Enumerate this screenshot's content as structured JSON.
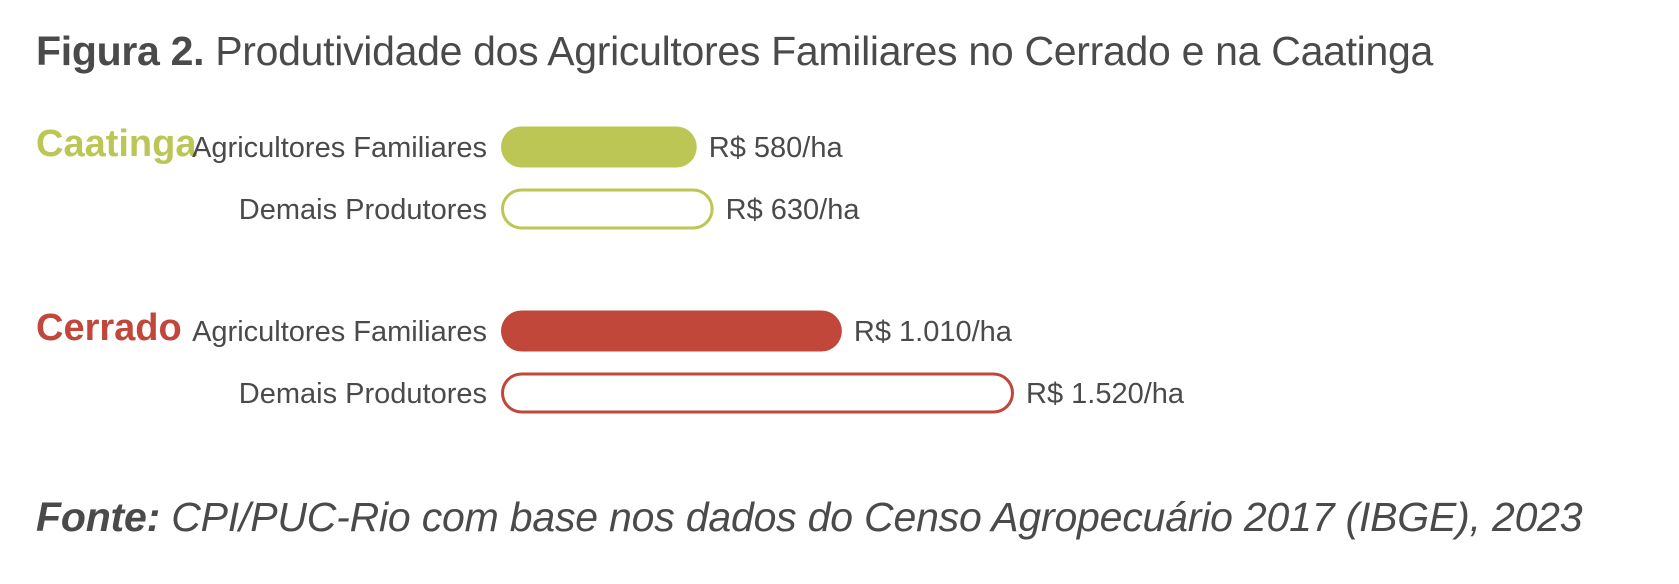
{
  "title": {
    "prefix": "Figura 2.",
    "text": "Produtividade dos Agricultores Familiares no Cerrado e na Caatinga"
  },
  "source": {
    "prefix": "Fonte:",
    "text": "CPI/PUC-Rio com base nos dados do Censo Agropecuário 2017 (IBGE), 2023"
  },
  "colors": {
    "caatinga": "#bcc654",
    "cerrado": "#c0473a",
    "text": "#4a4a4a"
  },
  "chart_data": {
    "type": "bar",
    "orientation": "horizontal",
    "unit": "R$/ha",
    "grid": false,
    "groups": [
      {
        "name": "Caatinga",
        "color": "#bcc654",
        "bars": [
          {
            "category": "Agricultores Familiares",
            "value": 580,
            "label": "R$ 580/ha",
            "style": "filled"
          },
          {
            "category": "Demais Produtores",
            "value": 630,
            "label": "R$ 630/ha",
            "style": "outline"
          }
        ]
      },
      {
        "name": "Cerrado",
        "color": "#c0473a",
        "bars": [
          {
            "category": "Agricultores Familiares",
            "value": 1010,
            "label": "R$ 1.010/ha",
            "style": "filled"
          },
          {
            "category": "Demais Produtores",
            "value": 1520,
            "label": "R$ 1.520/ha",
            "style": "outline"
          }
        ]
      }
    ]
  }
}
